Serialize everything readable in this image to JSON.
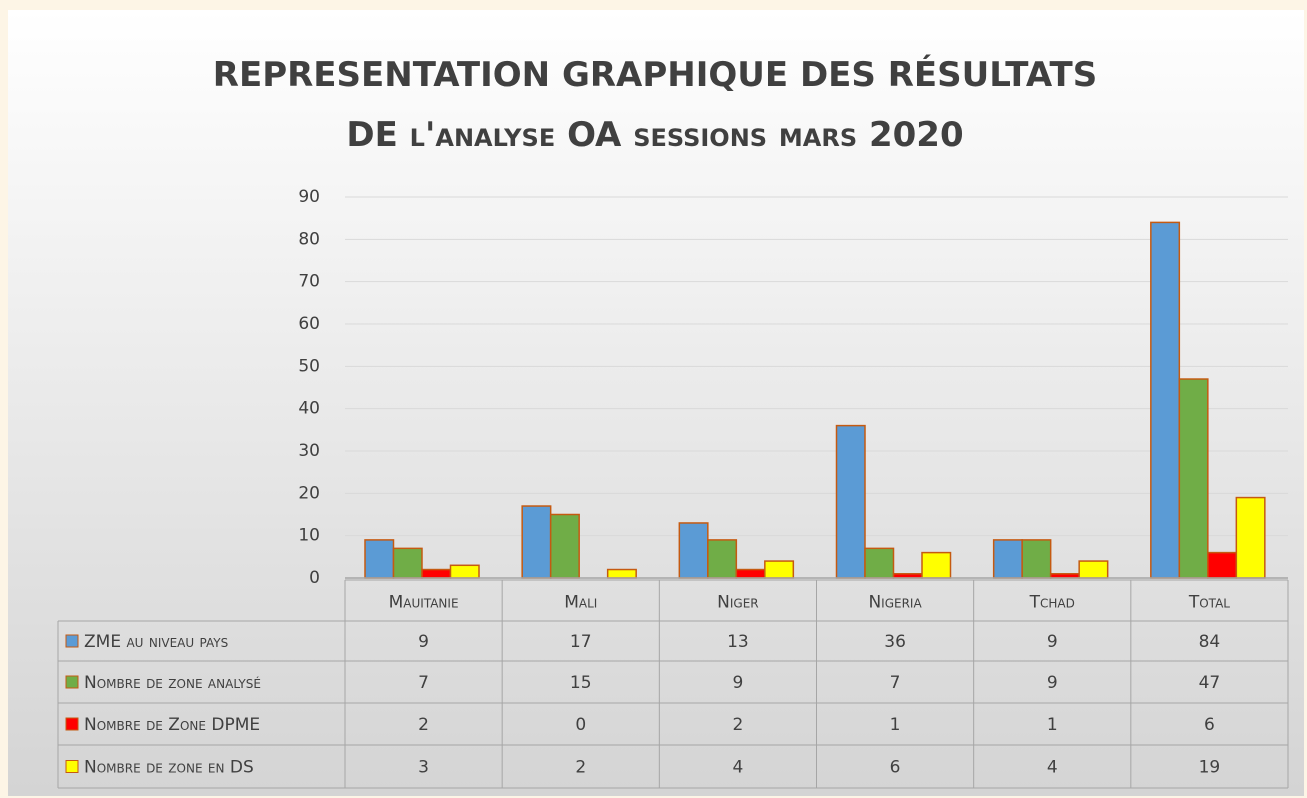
{
  "chart_data": {
    "type": "bar",
    "title": "REPRESENTATION GRAPHIQUE DES RÉSULTATS DE l'analyse OA sessions mars 2020",
    "categories": [
      "Mauitanie",
      "Mali",
      "Niger",
      "Nigeria",
      "Tchad",
      "Total"
    ],
    "series": [
      {
        "name": "ZME au niveau pays",
        "color": "#5b9bd5",
        "values": [
          9,
          17,
          13,
          36,
          9,
          84
        ]
      },
      {
        "name": "Nombre de zone analysé",
        "color": "#70ad47",
        "values": [
          7,
          15,
          9,
          7,
          9,
          47
        ]
      },
      {
        "name": "Nombre de Zone DPME",
        "color": "#ff0000",
        "values": [
          2,
          0,
          2,
          1,
          1,
          6
        ]
      },
      {
        "name": "Nombre de zone en DS",
        "color": "#ffff00",
        "values": [
          3,
          2,
          4,
          6,
          4,
          19
        ]
      }
    ],
    "ylim": [
      0,
      90
    ],
    "yticks": [
      0,
      10,
      20,
      30,
      40,
      50,
      60,
      70,
      80,
      90
    ],
    "grid": true
  }
}
